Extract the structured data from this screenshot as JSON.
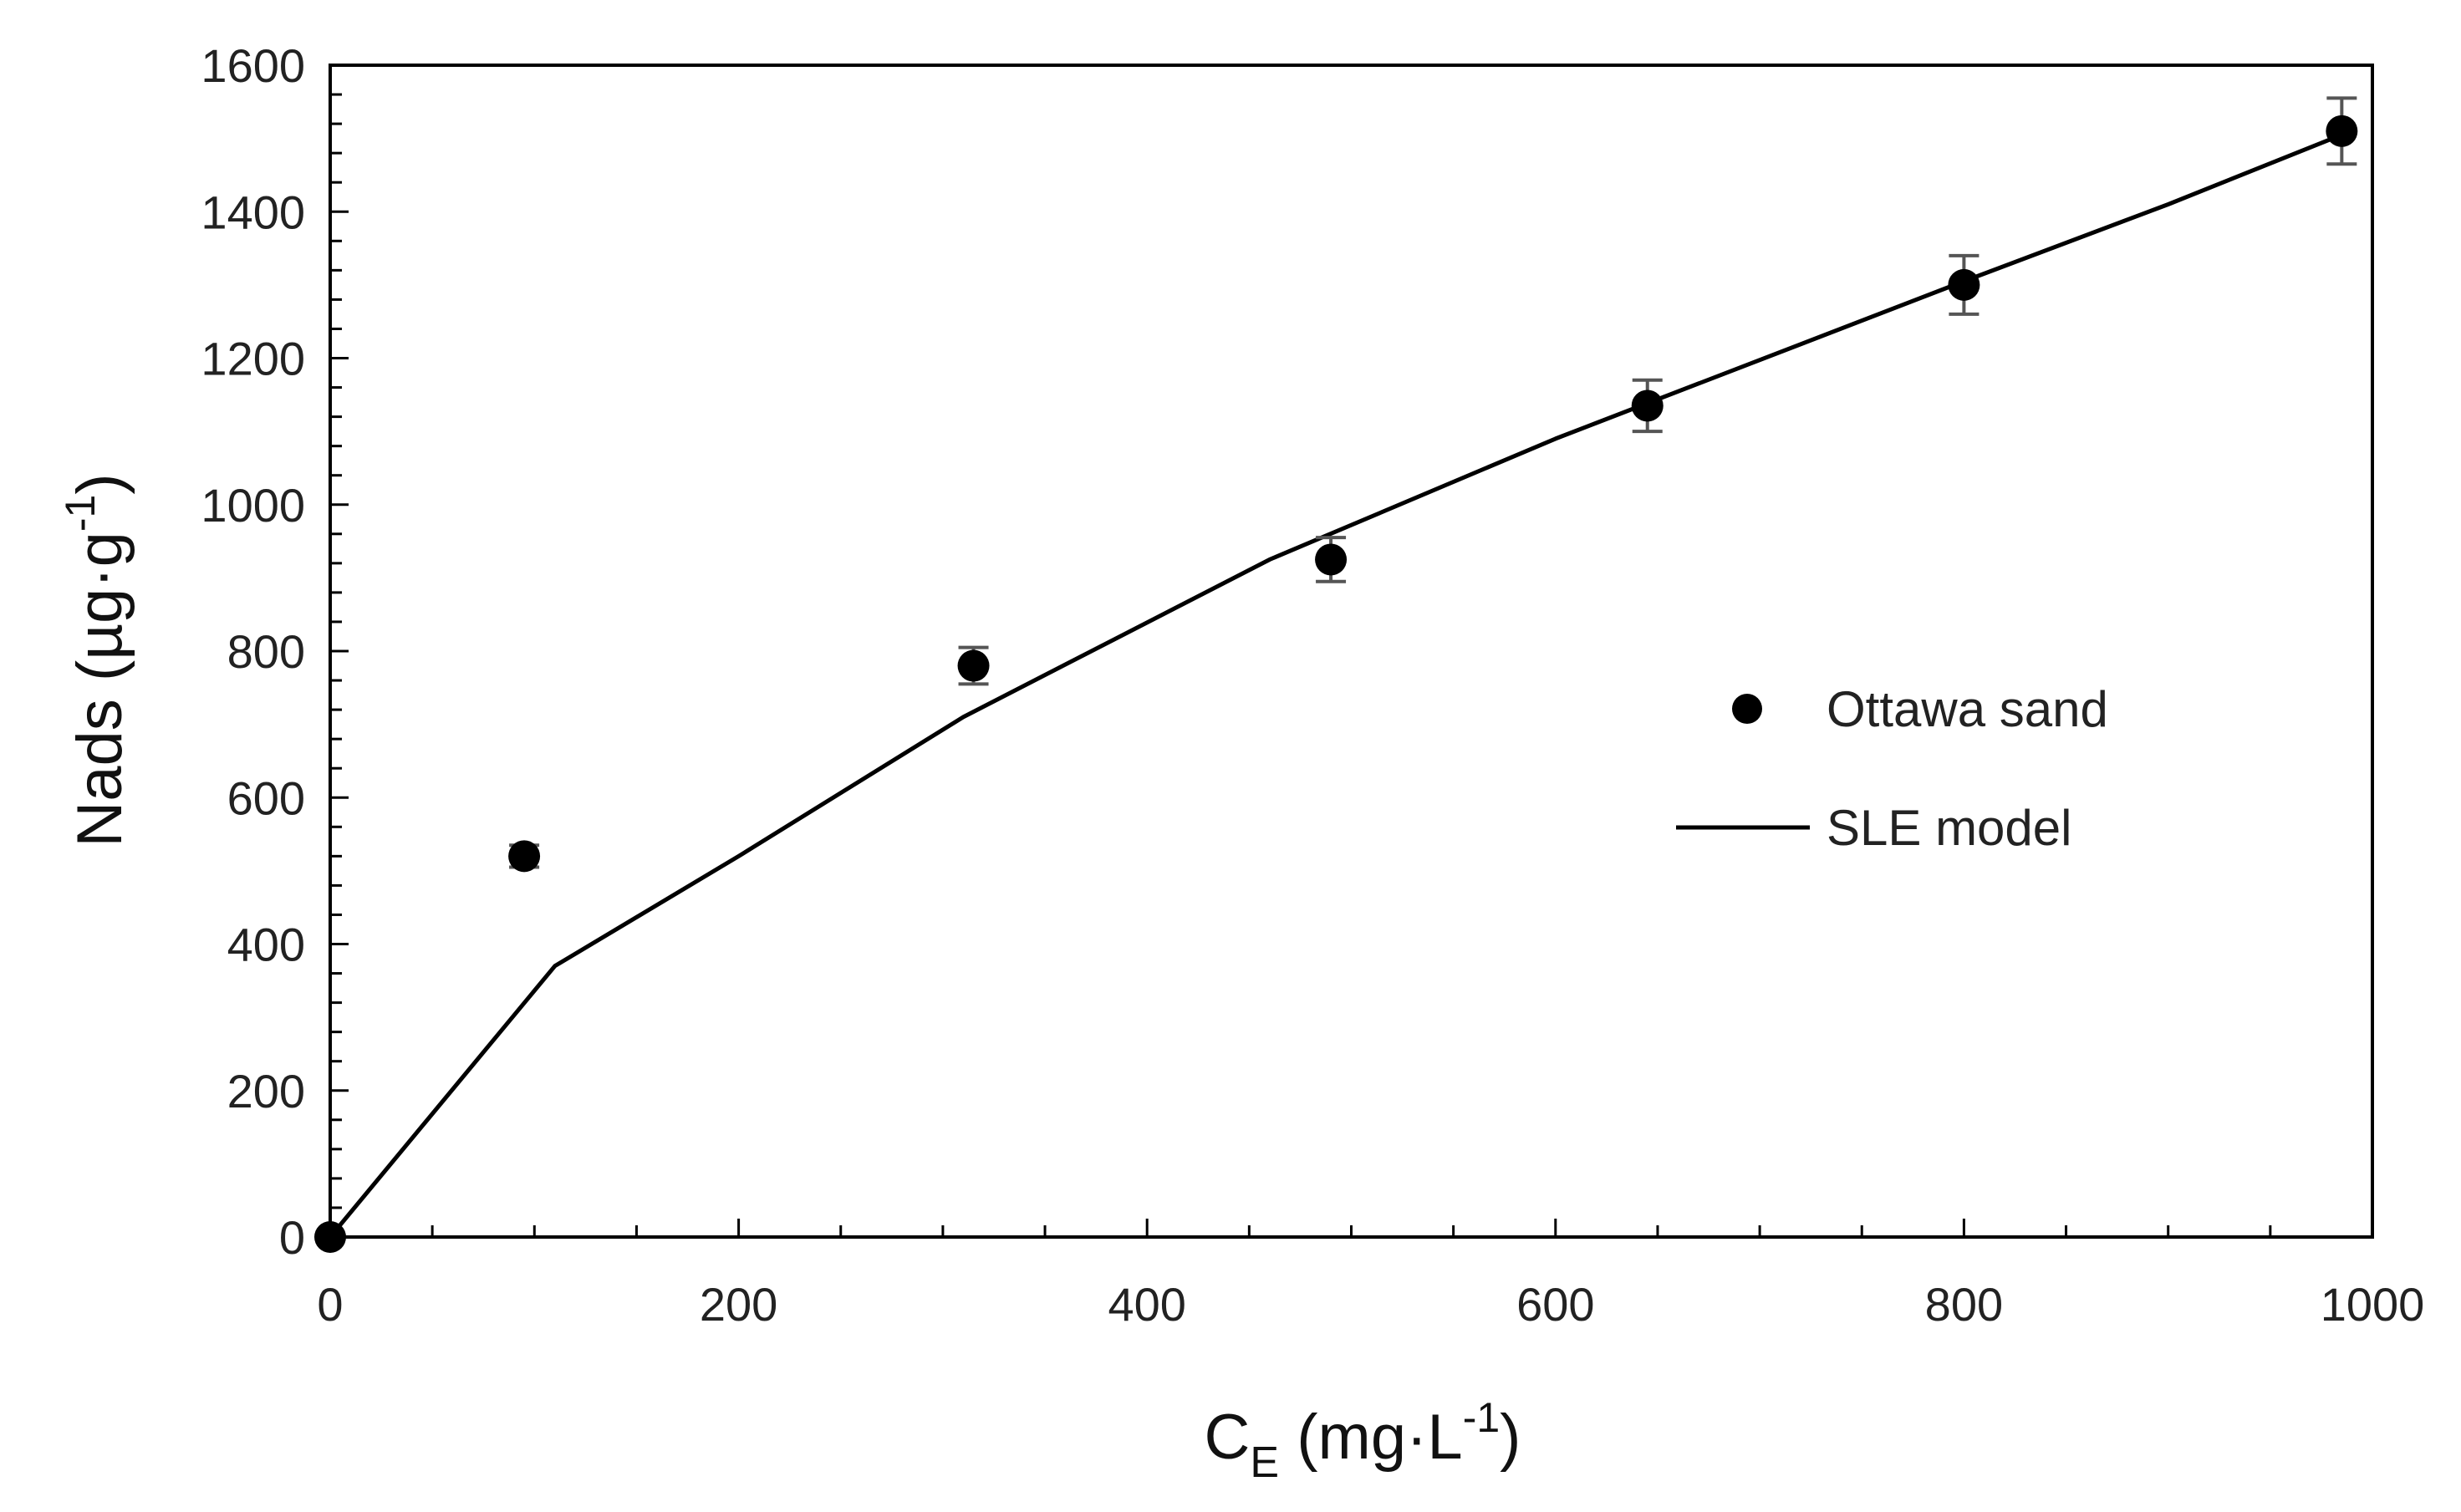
{
  "chart_data": {
    "type": "scatter",
    "title": "",
    "xlabel": {
      "main": "C",
      "sub": "E",
      "unit_open": " (mg·L",
      "unit_sup": "-1",
      "unit_close": ")"
    },
    "ylabel": {
      "main": "Nads (µg·g",
      "sup": "-1",
      "close": ")"
    },
    "xlim": [
      0,
      1000
    ],
    "ylim": [
      0,
      1600
    ],
    "x_major_ticks": [
      0,
      200,
      400,
      600,
      800,
      1000
    ],
    "x_tick_labels": [
      "0",
      "200",
      "400",
      "600",
      "800",
      "1000"
    ],
    "x_minor_step": 50,
    "y_major_ticks": [
      0,
      200,
      400,
      600,
      800,
      1000,
      1200,
      1400,
      1600
    ],
    "y_tick_labels": [
      "0",
      "200",
      "400",
      "600",
      "800",
      "1000",
      "1200",
      "1400",
      "1600"
    ],
    "y_minor_step": 40,
    "grid": false,
    "legend_position": "right-middle",
    "series": [
      {
        "name": "Ottawa sand",
        "kind": "scatter",
        "marker": "circle",
        "color": "#000000",
        "error_color": "#555555",
        "x": [
          0,
          95,
          315,
          490,
          645,
          800,
          985
        ],
        "y": [
          0,
          520,
          780,
          925,
          1135,
          1300,
          1510
        ],
        "yerr": [
          0,
          15,
          25,
          30,
          35,
          40,
          45
        ]
      },
      {
        "name": "SLE model",
        "kind": "line",
        "color": "#000000",
        "x": [
          0,
          110,
          200,
          310,
          460,
          600,
          800,
          900,
          985
        ],
        "y": [
          0,
          370,
          520,
          710,
          925,
          1090,
          1305,
          1410,
          1505
        ]
      }
    ]
  }
}
